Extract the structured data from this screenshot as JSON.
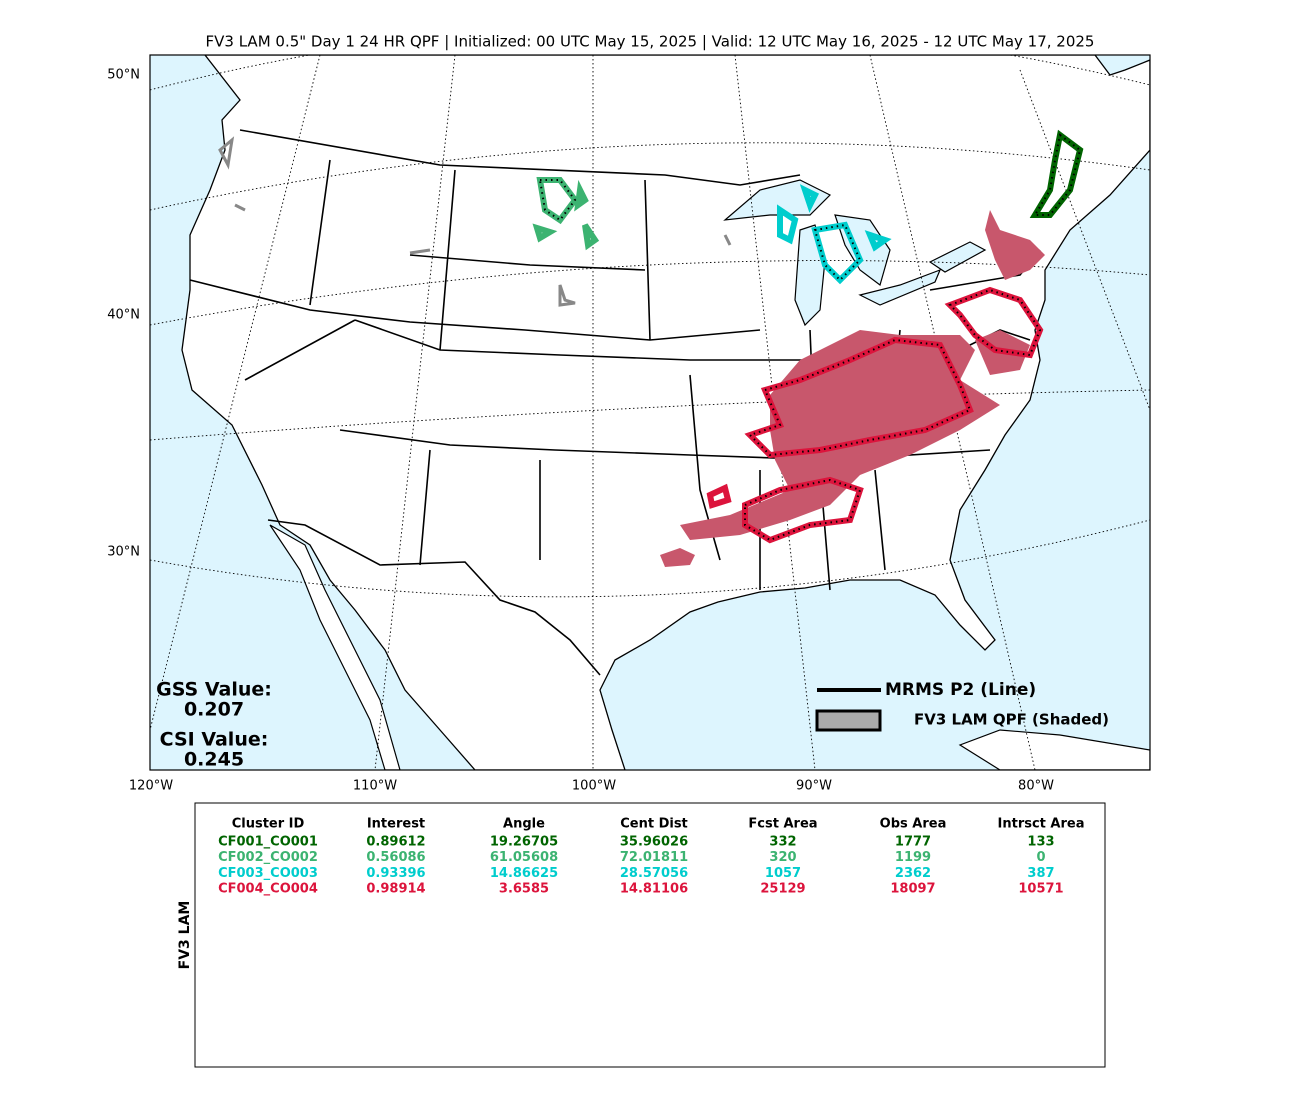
{
  "title": "FV3 LAM 0.5\" Day 1 24 HR QPF | Initialized: 00 UTC May 15, 2025 | Valid: 12 UTC May 16, 2025 - 12 UTC May 17, 2025",
  "map": {
    "lat_labels": [
      "50°N",
      "40°N",
      "30°N"
    ],
    "lon_labels": [
      "120°W",
      "110°W",
      "100°W",
      "90°W",
      "80°W"
    ],
    "scores": [
      {
        "label": "GSS Value:",
        "value": 0.207
      },
      {
        "label": "CSI Value:",
        "value": 0.245
      }
    ],
    "legend": [
      "MRMS P2 (Line)",
      "FV3 LAM QPF (Shaded)"
    ]
  },
  "table": {
    "side_label": "FV3 LAM",
    "headers": [
      "Cluster ID",
      "Interest",
      "Angle",
      "Cent Dist",
      "Fcst Area",
      "Obs Area",
      "Intrsct Area"
    ],
    "rows": [
      {
        "color": "#006400",
        "cells": [
          "CF001_CO001",
          0.89612,
          19.26705,
          35.96026,
          332,
          1777,
          133
        ]
      },
      {
        "color": "#3cb371",
        "cells": [
          "CF002_CO002",
          0.56086,
          61.05608,
          72.01811,
          320,
          1199,
          0
        ]
      },
      {
        "color": "#00cdcd",
        "cells": [
          "CF003_CO003",
          0.93396,
          14.86625,
          28.57056,
          1057,
          2362,
          387
        ]
      },
      {
        "color": "#dc143c",
        "cells": [
          "CF004_CO004",
          0.98914,
          3.6585,
          14.81106,
          25129,
          18097,
          10571
        ]
      }
    ]
  }
}
